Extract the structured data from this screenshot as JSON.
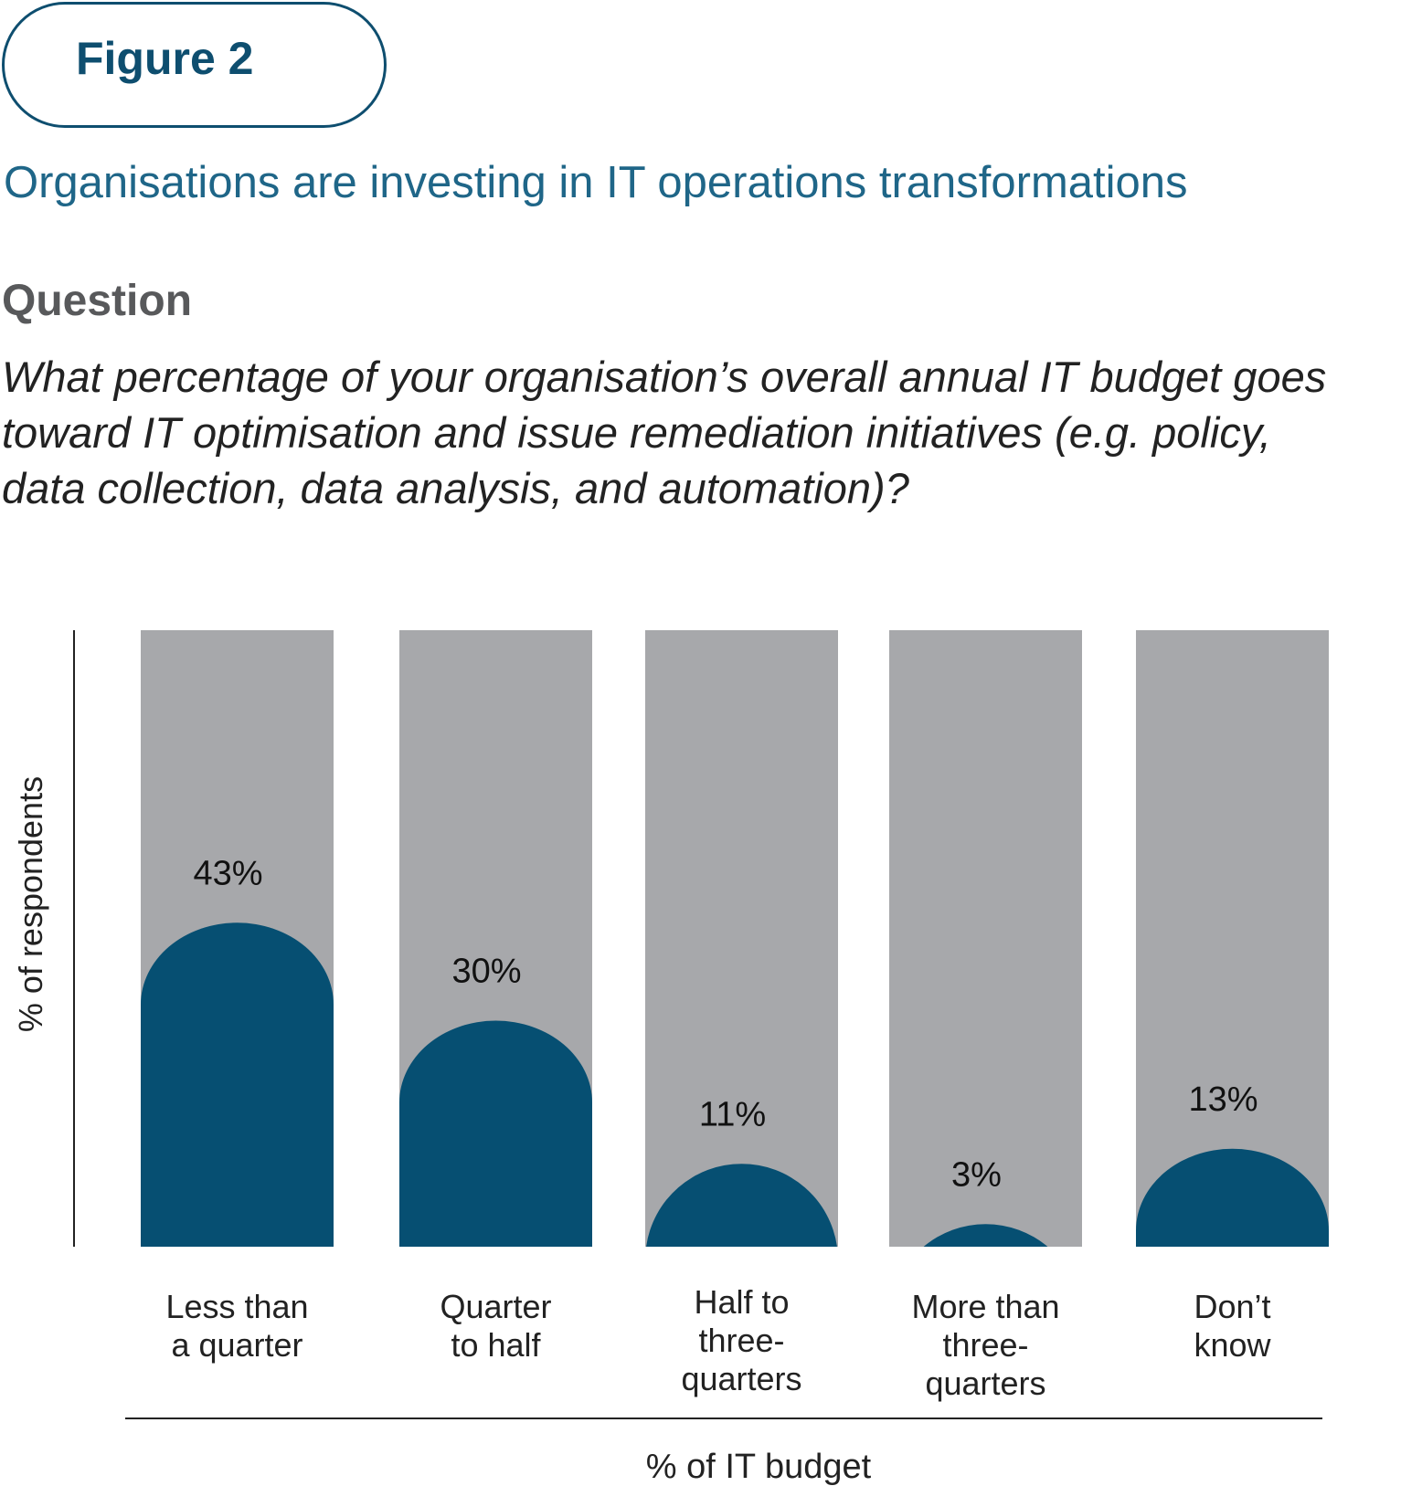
{
  "figure_label": "Figure 2",
  "subtitle": "Organisations are investing in IT operations transformations",
  "question_heading": "Question",
  "question_lines": [
    "What percentage of your organisation’s overall annual IT budget goes",
    "toward IT optimisation and issue remediation initiatives (e.g. policy,",
    "data collection, data  analysis, and automation)?"
  ],
  "colors": {
    "accent": "#0e4e6f",
    "bar_background": "#a7a8ab",
    "bar_fill": "#064f72",
    "subtitle": "#1f6688",
    "heading": "#58595b"
  },
  "chart_data": {
    "type": "bar",
    "categories": [
      [
        "Less than",
        "a quarter"
      ],
      [
        "Quarter",
        "to half"
      ],
      [
        "Half to",
        "three-",
        "quarters"
      ],
      [
        "More than",
        "three-",
        "quarters"
      ],
      [
        "Don’t",
        "know"
      ]
    ],
    "values": [
      43,
      30,
      11,
      3,
      13
    ],
    "value_labels": [
      "43%",
      "30%",
      "11%",
      "3%",
      "13%"
    ],
    "ylabel": "% of respondents",
    "xlabel": "% of IT budget",
    "ylim": [
      0,
      100
    ],
    "grid": false,
    "legend": "none"
  }
}
